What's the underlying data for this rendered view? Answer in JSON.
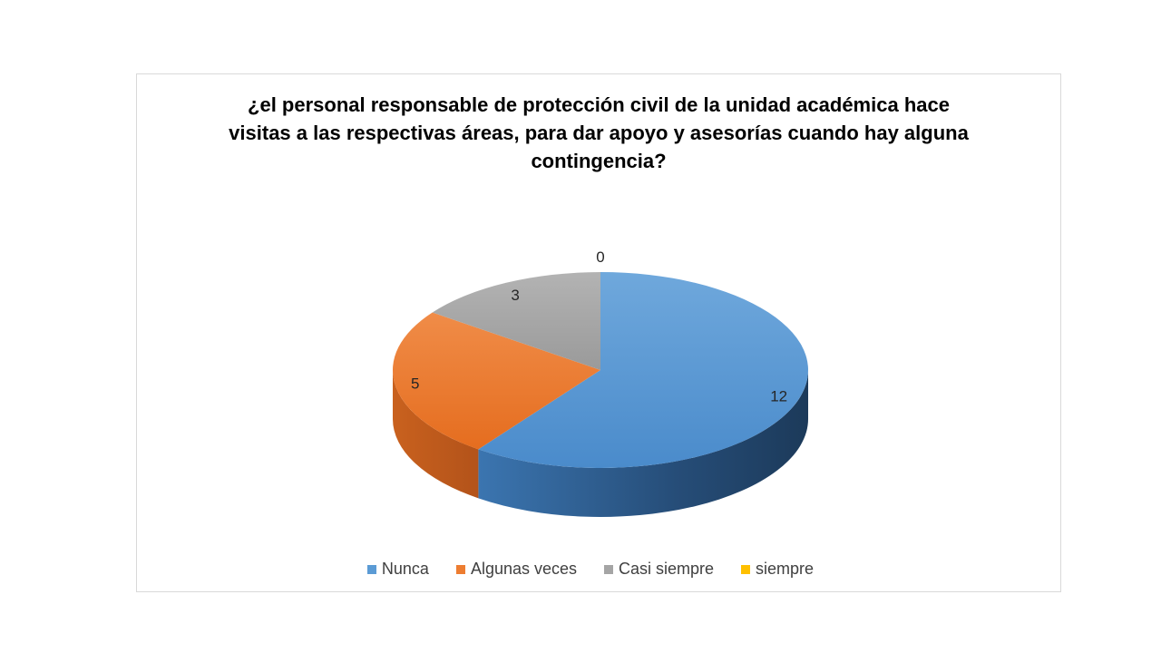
{
  "chart_data": {
    "type": "pie",
    "title": "¿el personal responsable de protección civil de la unidad académica hace visitas a las respectivas áreas, para dar apoyo y asesorías cuando hay alguna contingencia?",
    "categories": [
      "Nunca",
      "Algunas veces",
      "Casi siempre",
      "siempre"
    ],
    "values": [
      12,
      5,
      3,
      0
    ],
    "data_labels": [
      "12",
      "5",
      "3",
      "0"
    ],
    "colors": [
      "#5b9bd5",
      "#ed7d31",
      "#a5a5a5",
      "#ffc000"
    ],
    "style": "3d",
    "legend": "bottom"
  }
}
